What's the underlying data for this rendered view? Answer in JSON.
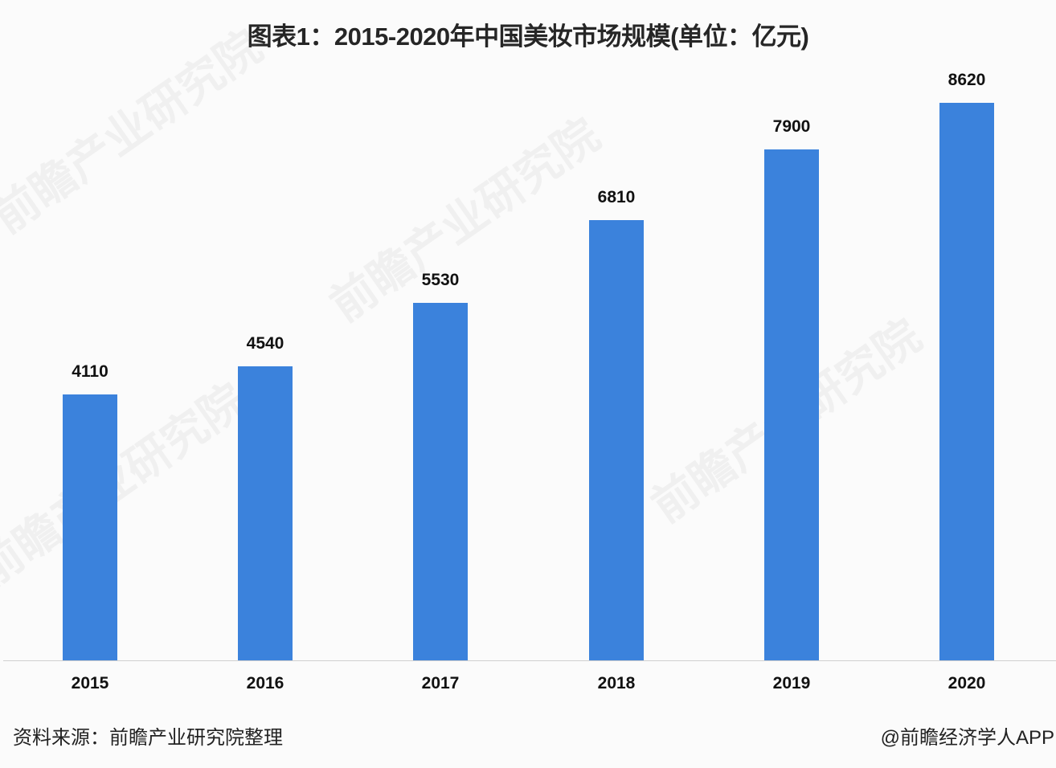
{
  "header": {
    "title": "图表1：2015-2020年中国美妆市场规模(单位：亿元)"
  },
  "footer": {
    "source": "资料来源：前瞻产业研究院整理",
    "credit": "@前瞻经济学人APP"
  },
  "watermark": {
    "text": "前瞻产业研究院"
  },
  "colors": {
    "bar": "#3b82dc",
    "axis": "#d0d0d0",
    "background": "#fbfbfb"
  },
  "chart_data": {
    "type": "bar",
    "title": "图表1：2015-2020年中国美妆市场规模(单位：亿元)",
    "xlabel": "",
    "ylabel": "亿元",
    "categories": [
      "2015",
      "2016",
      "2017",
      "2018",
      "2019",
      "2020"
    ],
    "values": [
      4110,
      4540,
      5530,
      6810,
      7900,
      8620
    ],
    "data_labels": [
      "4110",
      "4540",
      "5530",
      "6810",
      "7900",
      "8620"
    ],
    "ylim": [
      0,
      8620
    ],
    "grid": false,
    "legend": null,
    "y_axis_visible": false
  }
}
